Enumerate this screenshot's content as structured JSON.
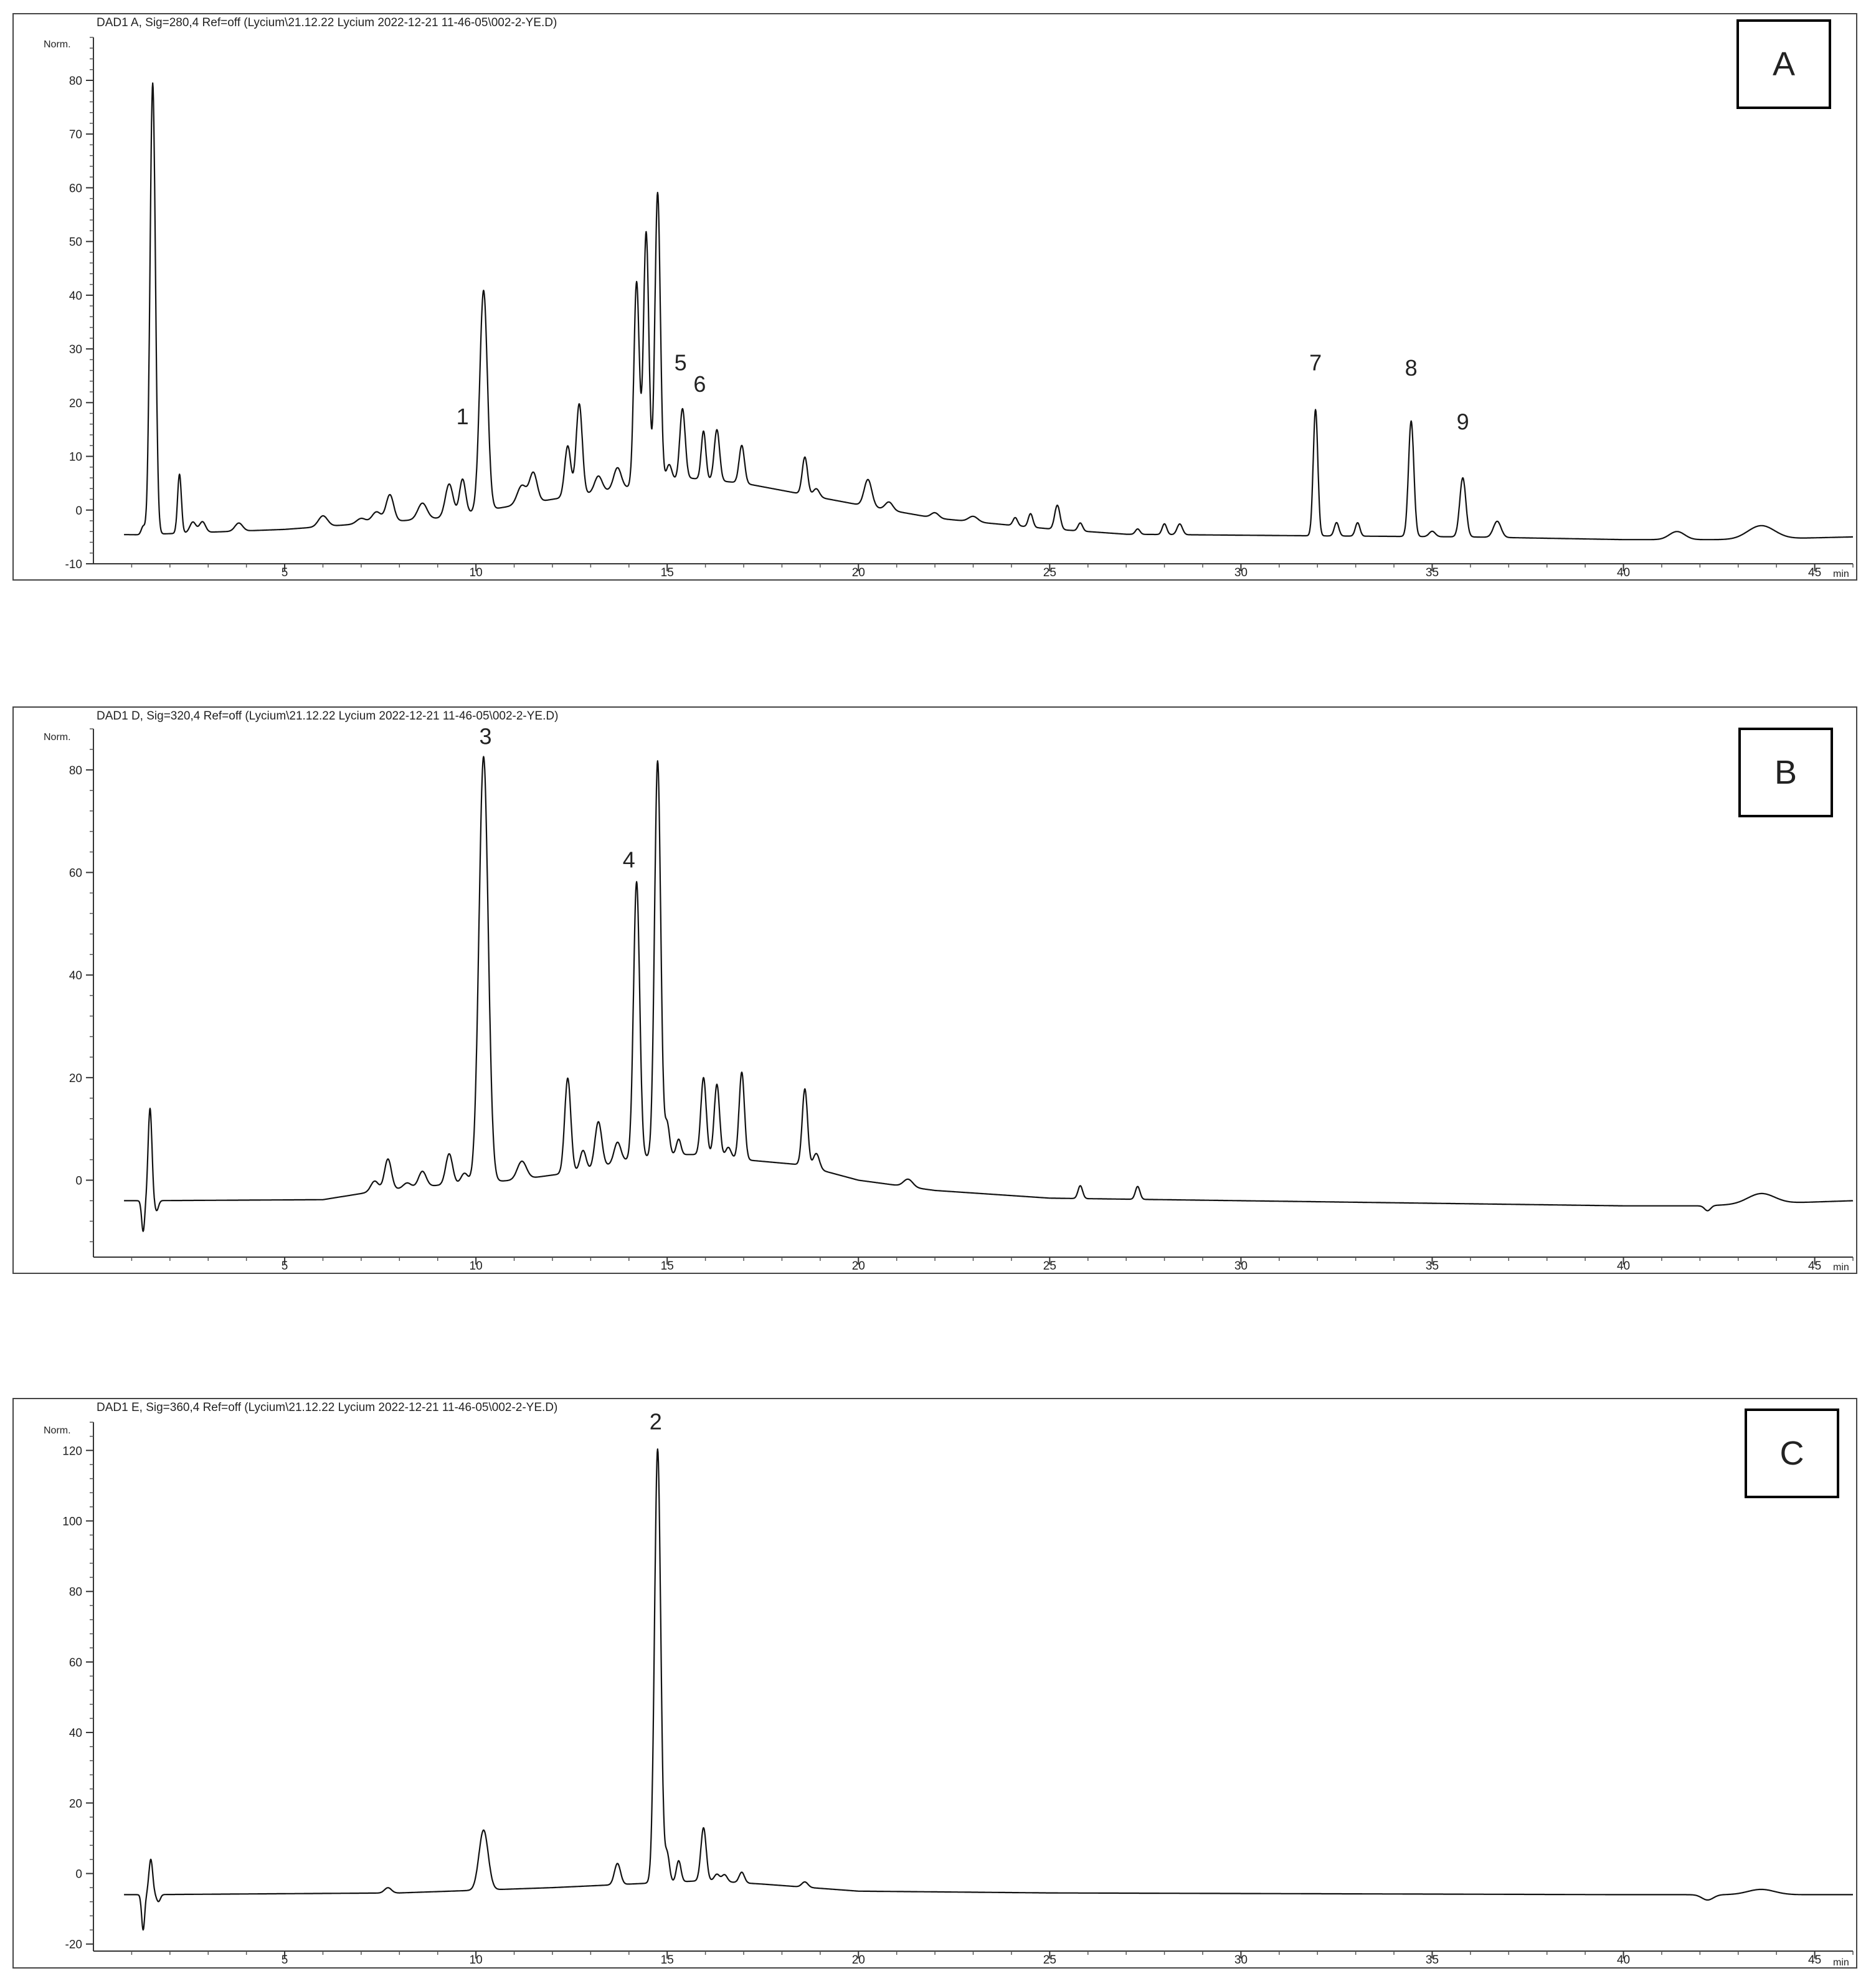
{
  "chart_data": [
    {
      "type": "line",
      "panel_label": "A",
      "header": "DAD1 A, Sig=280,4 Ref=off (Lycium\\21.12.22 Lycium 2022-12-21 11-46-05\\002-2-YE.D)",
      "ylabel": "Norm.",
      "xunit": "min",
      "xlim": [
        0,
        46
      ],
      "ylim": [
        -10,
        88
      ],
      "xticks": [
        5,
        10,
        15,
        20,
        25,
        30,
        35,
        40,
        45
      ],
      "yticks": [
        -10,
        0,
        10,
        20,
        30,
        40,
        50,
        60,
        70,
        80
      ],
      "baseline": [
        [
          0,
          -4.5
        ],
        [
          1.2,
          -4.6
        ],
        [
          5,
          -3.6
        ],
        [
          9,
          -1.5
        ],
        [
          12,
          2
        ],
        [
          13.8,
          4
        ],
        [
          15.5,
          6
        ],
        [
          17,
          5
        ],
        [
          18.5,
          3
        ],
        [
          20,
          1
        ],
        [
          22,
          -1.5
        ],
        [
          25,
          -3.5
        ],
        [
          27,
          -4.5
        ],
        [
          32,
          -4.8
        ],
        [
          36,
          -5
        ],
        [
          40,
          -5.5
        ],
        [
          43,
          -5.5
        ],
        [
          46,
          -5
        ]
      ],
      "peaks": [
        {
          "rt": 1.3,
          "height": 1.5,
          "width": 0.05
        },
        {
          "rt": 1.55,
          "height": 84,
          "width": 0.07
        },
        {
          "rt": 2.25,
          "height": 11,
          "width": 0.05
        },
        {
          "rt": 2.6,
          "height": 2,
          "width": 0.08
        },
        {
          "rt": 2.85,
          "height": 2,
          "width": 0.08
        },
        {
          "rt": 3.8,
          "height": 1.5,
          "width": 0.1
        },
        {
          "rt": 6.0,
          "height": 2,
          "width": 0.12
        },
        {
          "rt": 7.0,
          "height": 1,
          "width": 0.12
        },
        {
          "rt": 7.4,
          "height": 2,
          "width": 0.12
        },
        {
          "rt": 7.75,
          "height": 5,
          "width": 0.1
        },
        {
          "rt": 8.6,
          "height": 3,
          "width": 0.12
        },
        {
          "rt": 9.3,
          "height": 6,
          "width": 0.1
        },
        {
          "rt": 9.65,
          "height": 6.5,
          "width": 0.08
        },
        {
          "rt": 10.2,
          "height": 41,
          "width": 0.1
        },
        {
          "rt": 11.2,
          "height": 3.5,
          "width": 0.12
        },
        {
          "rt": 11.5,
          "height": 5.5,
          "width": 0.1
        },
        {
          "rt": 12.4,
          "height": 9.5,
          "width": 0.08
        },
        {
          "rt": 12.7,
          "height": 17,
          "width": 0.08
        },
        {
          "rt": 13.2,
          "height": 3,
          "width": 0.1
        },
        {
          "rt": 13.7,
          "height": 4,
          "width": 0.1
        },
        {
          "rt": 14.2,
          "height": 38,
          "width": 0.07
        },
        {
          "rt": 14.45,
          "height": 47,
          "width": 0.07
        },
        {
          "rt": 14.75,
          "height": 54,
          "width": 0.07
        },
        {
          "rt": 15.05,
          "height": 3,
          "width": 0.07
        },
        {
          "rt": 15.4,
          "height": 13,
          "width": 0.07
        },
        {
          "rt": 15.95,
          "height": 9,
          "width": 0.06
        },
        {
          "rt": 16.3,
          "height": 9.5,
          "width": 0.07
        },
        {
          "rt": 16.95,
          "height": 7,
          "width": 0.07
        },
        {
          "rt": 18.6,
          "height": 7,
          "width": 0.07
        },
        {
          "rt": 18.9,
          "height": 1.5,
          "width": 0.08
        },
        {
          "rt": 20.25,
          "height": 5,
          "width": 0.1
        },
        {
          "rt": 20.8,
          "height": 1.5,
          "width": 0.1
        },
        {
          "rt": 22.0,
          "height": 1,
          "width": 0.1
        },
        {
          "rt": 23.0,
          "height": 1,
          "width": 0.12
        },
        {
          "rt": 24.1,
          "height": 1.5,
          "width": 0.06
        },
        {
          "rt": 24.5,
          "height": 2.5,
          "width": 0.06
        },
        {
          "rt": 25.2,
          "height": 4.5,
          "width": 0.07
        },
        {
          "rt": 25.8,
          "height": 1.5,
          "width": 0.06
        },
        {
          "rt": 27.3,
          "height": 1,
          "width": 0.06
        },
        {
          "rt": 28.0,
          "height": 2,
          "width": 0.06
        },
        {
          "rt": 28.4,
          "height": 2,
          "width": 0.07
        },
        {
          "rt": 31.95,
          "height": 23.5,
          "width": 0.06
        },
        {
          "rt": 32.5,
          "height": 2.5,
          "width": 0.06
        },
        {
          "rt": 33.05,
          "height": 2.5,
          "width": 0.06
        },
        {
          "rt": 34.45,
          "height": 21.5,
          "width": 0.07
        },
        {
          "rt": 35.0,
          "height": 1,
          "width": 0.08
        },
        {
          "rt": 35.8,
          "height": 11,
          "width": 0.08
        },
        {
          "rt": 36.7,
          "height": 3,
          "width": 0.1
        },
        {
          "rt": 41.4,
          "height": 1.5,
          "width": 0.2
        },
        {
          "rt": 43.6,
          "height": 2.5,
          "width": 0.35
        }
      ],
      "annotations": [
        {
          "label": "1",
          "x": 9.65,
          "y": 16
        },
        {
          "label": "5",
          "x": 15.35,
          "y": 26
        },
        {
          "label": "6",
          "x": 15.85,
          "y": 22
        },
        {
          "label": "7",
          "x": 31.95,
          "y": 26
        },
        {
          "label": "8",
          "x": 34.45,
          "y": 25
        },
        {
          "label": "9",
          "x": 35.8,
          "y": 15
        }
      ]
    },
    {
      "type": "line",
      "panel_label": "B",
      "header": "DAD1 D, Sig=320,4 Ref=off (Lycium\\21.12.22 Lycium 2022-12-21 11-46-05\\002-2-YE.D)",
      "ylabel": "Norm.",
      "xunit": "min",
      "xlim": [
        0,
        46
      ],
      "ylim": [
        -15,
        88
      ],
      "xticks": [
        5,
        10,
        15,
        20,
        25,
        30,
        35,
        40,
        45
      ],
      "yticks": [
        0,
        20,
        40,
        60,
        80
      ],
      "baseline": [
        [
          0,
          -4
        ],
        [
          1.2,
          -4
        ],
        [
          6,
          -3.8
        ],
        [
          7.5,
          -2
        ],
        [
          9,
          -1
        ],
        [
          11,
          0
        ],
        [
          13,
          2
        ],
        [
          14,
          4
        ],
        [
          15,
          5
        ],
        [
          16,
          5
        ],
        [
          17,
          4
        ],
        [
          18.5,
          3
        ],
        [
          20,
          0
        ],
        [
          22,
          -2
        ],
        [
          25,
          -3.5
        ],
        [
          30,
          -4
        ],
        [
          35,
          -4.5
        ],
        [
          40,
          -5
        ],
        [
          42,
          -5
        ],
        [
          46,
          -4
        ]
      ],
      "peaks": [
        {
          "rt": 1.3,
          "height": -6,
          "width": 0.04
        },
        {
          "rt": 1.48,
          "height": 18,
          "width": 0.05
        },
        {
          "rt": 1.65,
          "height": -2,
          "width": 0.05
        },
        {
          "rt": 7.35,
          "height": 2,
          "width": 0.1
        },
        {
          "rt": 7.7,
          "height": 6,
          "width": 0.09
        },
        {
          "rt": 8.2,
          "height": 1,
          "width": 0.1
        },
        {
          "rt": 8.6,
          "height": 3,
          "width": 0.1
        },
        {
          "rt": 9.3,
          "height": 6,
          "width": 0.09
        },
        {
          "rt": 9.7,
          "height": 2,
          "width": 0.09
        },
        {
          "rt": 10.2,
          "height": 83,
          "width": 0.12
        },
        {
          "rt": 11.2,
          "height": 3.5,
          "width": 0.12
        },
        {
          "rt": 12.4,
          "height": 18.5,
          "width": 0.08
        },
        {
          "rt": 12.8,
          "height": 4,
          "width": 0.08
        },
        {
          "rt": 13.2,
          "height": 9,
          "width": 0.09
        },
        {
          "rt": 13.7,
          "height": 4,
          "width": 0.09
        },
        {
          "rt": 14.2,
          "height": 54,
          "width": 0.08
        },
        {
          "rt": 14.75,
          "height": 77,
          "width": 0.08
        },
        {
          "rt": 15.0,
          "height": 6,
          "width": 0.06
        },
        {
          "rt": 15.3,
          "height": 3,
          "width": 0.06
        },
        {
          "rt": 15.95,
          "height": 15,
          "width": 0.07
        },
        {
          "rt": 16.3,
          "height": 14,
          "width": 0.07
        },
        {
          "rt": 16.6,
          "height": 2,
          "width": 0.07
        },
        {
          "rt": 16.95,
          "height": 17,
          "width": 0.07
        },
        {
          "rt": 18.6,
          "height": 15,
          "width": 0.07
        },
        {
          "rt": 18.9,
          "height": 3,
          "width": 0.08
        },
        {
          "rt": 21.3,
          "height": 1.5,
          "width": 0.12
        },
        {
          "rt": 25.8,
          "height": 2.5,
          "width": 0.06
        },
        {
          "rt": 27.3,
          "height": 2.5,
          "width": 0.06
        },
        {
          "rt": 42.2,
          "height": -1,
          "width": 0.08
        },
        {
          "rt": 43.6,
          "height": 2,
          "width": 0.35
        }
      ],
      "annotations": [
        {
          "label": "3",
          "x": 10.25,
          "y": 85
        },
        {
          "label": "4",
          "x": 14.0,
          "y": 61
        }
      ]
    },
    {
      "type": "line",
      "panel_label": "C",
      "header": "DAD1 E, Sig=360,4 Ref=off (Lycium\\21.12.22 Lycium 2022-12-21 11-46-05\\002-2-YE.D)",
      "ylabel": "Norm.",
      "xunit": "min",
      "xlim": [
        0,
        46
      ],
      "ylim": [
        -22,
        128
      ],
      "xticks": [
        5,
        10,
        15,
        20,
        25,
        30,
        35,
        40,
        45
      ],
      "yticks": [
        -20,
        0,
        20,
        40,
        60,
        80,
        100,
        120
      ],
      "baseline": [
        [
          0,
          -6
        ],
        [
          1.2,
          -6
        ],
        [
          8,
          -5.5
        ],
        [
          12,
          -4
        ],
        [
          14,
          -3
        ],
        [
          16,
          -2
        ],
        [
          17.5,
          -3
        ],
        [
          20,
          -5
        ],
        [
          25,
          -5.5
        ],
        [
          40,
          -6
        ],
        [
          42,
          -6
        ],
        [
          46,
          -6
        ]
      ],
      "peaks": [
        {
          "rt": 1.3,
          "height": -10,
          "width": 0.04
        },
        {
          "rt": 1.5,
          "height": 10,
          "width": 0.05
        },
        {
          "rt": 1.7,
          "height": -2,
          "width": 0.05
        },
        {
          "rt": 7.7,
          "height": 1.5,
          "width": 0.09
        },
        {
          "rt": 10.2,
          "height": 17,
          "width": 0.12
        },
        {
          "rt": 13.7,
          "height": 6,
          "width": 0.08
        },
        {
          "rt": 14.75,
          "height": 123,
          "width": 0.08
        },
        {
          "rt": 15.0,
          "height": 8,
          "width": 0.06
        },
        {
          "rt": 15.3,
          "height": 6,
          "width": 0.06
        },
        {
          "rt": 15.95,
          "height": 15,
          "width": 0.07
        },
        {
          "rt": 16.3,
          "height": 2,
          "width": 0.07
        },
        {
          "rt": 16.5,
          "height": 2,
          "width": 0.07
        },
        {
          "rt": 16.95,
          "height": 3,
          "width": 0.07
        },
        {
          "rt": 18.6,
          "height": 1.5,
          "width": 0.08
        },
        {
          "rt": 42.2,
          "height": -1.5,
          "width": 0.15
        },
        {
          "rt": 43.6,
          "height": 1.5,
          "width": 0.35
        }
      ],
      "annotations": [
        {
          "label": "2",
          "x": 14.7,
          "y": 126
        }
      ]
    }
  ]
}
